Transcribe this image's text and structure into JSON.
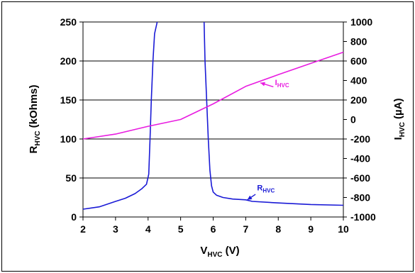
{
  "chart_data": {
    "type": "line",
    "x_axis": {
      "label_main": "V",
      "label_sub": "HVC",
      "label_tail": " (V)",
      "range": [
        2,
        10
      ],
      "ticks": [
        2,
        3,
        4,
        5,
        6,
        7,
        8,
        9,
        10
      ],
      "tick_labels": [
        "2",
        "3",
        "4",
        "5",
        "6",
        "7",
        "8",
        "9",
        "10"
      ]
    },
    "y_left": {
      "label_main": "R",
      "label_sub": "HVC",
      "label_tail": " (kOhms)",
      "range": [
        0,
        250
      ],
      "ticks": [
        0,
        50,
        100,
        150,
        200,
        250
      ],
      "tick_labels": [
        "0",
        "50",
        "100",
        "150",
        "200",
        "250"
      ]
    },
    "y_right": {
      "label_main": "I",
      "label_sub": "HVC",
      "label_tail": " (µA)",
      "range": [
        -1000,
        1000
      ],
      "ticks": [
        -1000,
        -800,
        -600,
        -400,
        -200,
        0,
        200,
        400,
        600,
        800,
        1000
      ],
      "tick_labels": [
        "-1000",
        "-800",
        "-600",
        "-400",
        "-200",
        "0",
        "200",
        "400",
        "600",
        "800",
        "1000"
      ]
    },
    "grid": {
      "horizontal": true,
      "vertical": false
    },
    "series": [
      {
        "label_main": "R",
        "label_sub": "HVC",
        "axis": "left",
        "color": "#1a1ad6",
        "x": [
          2.0,
          2.5,
          3.0,
          3.3,
          3.6,
          3.8,
          3.95,
          4.02,
          4.06,
          4.1,
          4.15,
          4.2,
          4.28
        ],
        "y": [
          10,
          13,
          20,
          24,
          30,
          36,
          42,
          55,
          100,
          150,
          200,
          235,
          250
        ]
      },
      {
        "label_main": "R",
        "label_sub": "HVC",
        "axis": "left",
        "color": "#1a1ad6",
        "x": [
          5.72,
          5.75,
          5.8,
          5.85,
          5.9,
          5.95,
          6.0,
          6.1,
          6.3,
          6.6,
          7.0,
          7.2,
          8.0,
          9.0,
          10.0
        ],
        "y": [
          250,
          200,
          150,
          100,
          60,
          40,
          32,
          28,
          25,
          23,
          22,
          20,
          18,
          16,
          15
        ]
      },
      {
        "label_main": "I",
        "label_sub": "HVC",
        "axis": "right",
        "color": "#e81ce0",
        "x": [
          2,
          3,
          4,
          5,
          6,
          7,
          8,
          9,
          10
        ],
        "y": [
          -200,
          -150,
          -70,
          0,
          160,
          340,
          460,
          575,
          690
        ]
      }
    ],
    "annotations": [
      {
        "label_main": "I",
        "label_sub": "HVC",
        "color": "#e81ce0",
        "text_at": [
          7.9,
          352
        ],
        "arrow_from": [
          7.85,
          335
        ],
        "arrow_to": [
          7.45,
          376
        ],
        "axis": "right"
      },
      {
        "label_main": "R",
        "label_sub": "HVC",
        "color": "#1a1ad6",
        "text_at": [
          7.35,
          34
        ],
        "arrow_from": [
          7.3,
          29
        ],
        "arrow_to": [
          7.05,
          22
        ],
        "axis": "left"
      }
    ]
  }
}
